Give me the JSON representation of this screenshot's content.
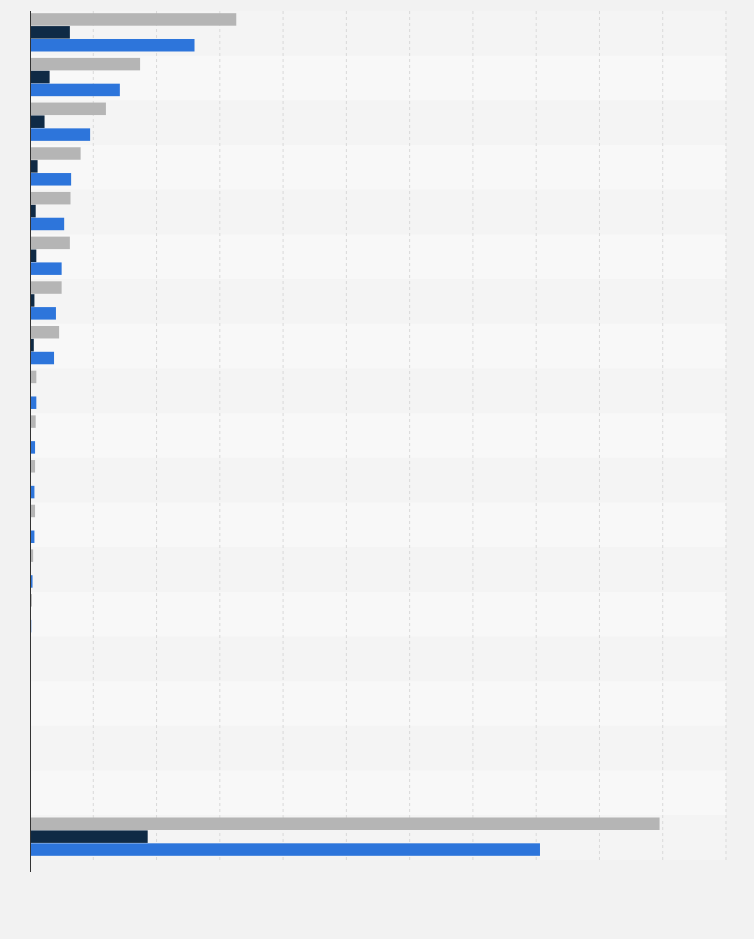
{
  "chart_data": {
    "type": "bar",
    "orientation": "horizontal",
    "grouped": true,
    "title": "",
    "xlabel": "",
    "ylabel": "",
    "grid": true,
    "xlim": [
      0,
      110
    ],
    "categories": [
      "",
      "",
      "",
      "",
      "",
      "",
      "",
      "",
      "",
      "",
      "",
      "",
      "",
      "",
      "",
      "",
      "",
      "",
      ""
    ],
    "series": [
      {
        "color": "#b5b5b5",
        "values": [
          32.6,
          17.4,
          12.0,
          8.0,
          6.4,
          6.3,
          5.0,
          4.6,
          1.0,
          0.9,
          0.8,
          0.8,
          0.5,
          0.3,
          0.1,
          0,
          0,
          0,
          99.5
        ]
      },
      {
        "color": "#0f2a45",
        "values": [
          6.3,
          3.1,
          2.3,
          1.2,
          0.9,
          1.0,
          0.7,
          0.6,
          0,
          0,
          0,
          0,
          0,
          0,
          0,
          0,
          0,
          0,
          18.6
        ]
      },
      {
        "color": "#2d75db",
        "values": [
          26.0,
          14.2,
          9.5,
          6.5,
          5.4,
          5.0,
          4.1,
          3.8,
          1.0,
          0.8,
          0.7,
          0.7,
          0.4,
          0.2,
          0.1,
          0,
          0,
          0,
          80.6
        ]
      }
    ]
  }
}
